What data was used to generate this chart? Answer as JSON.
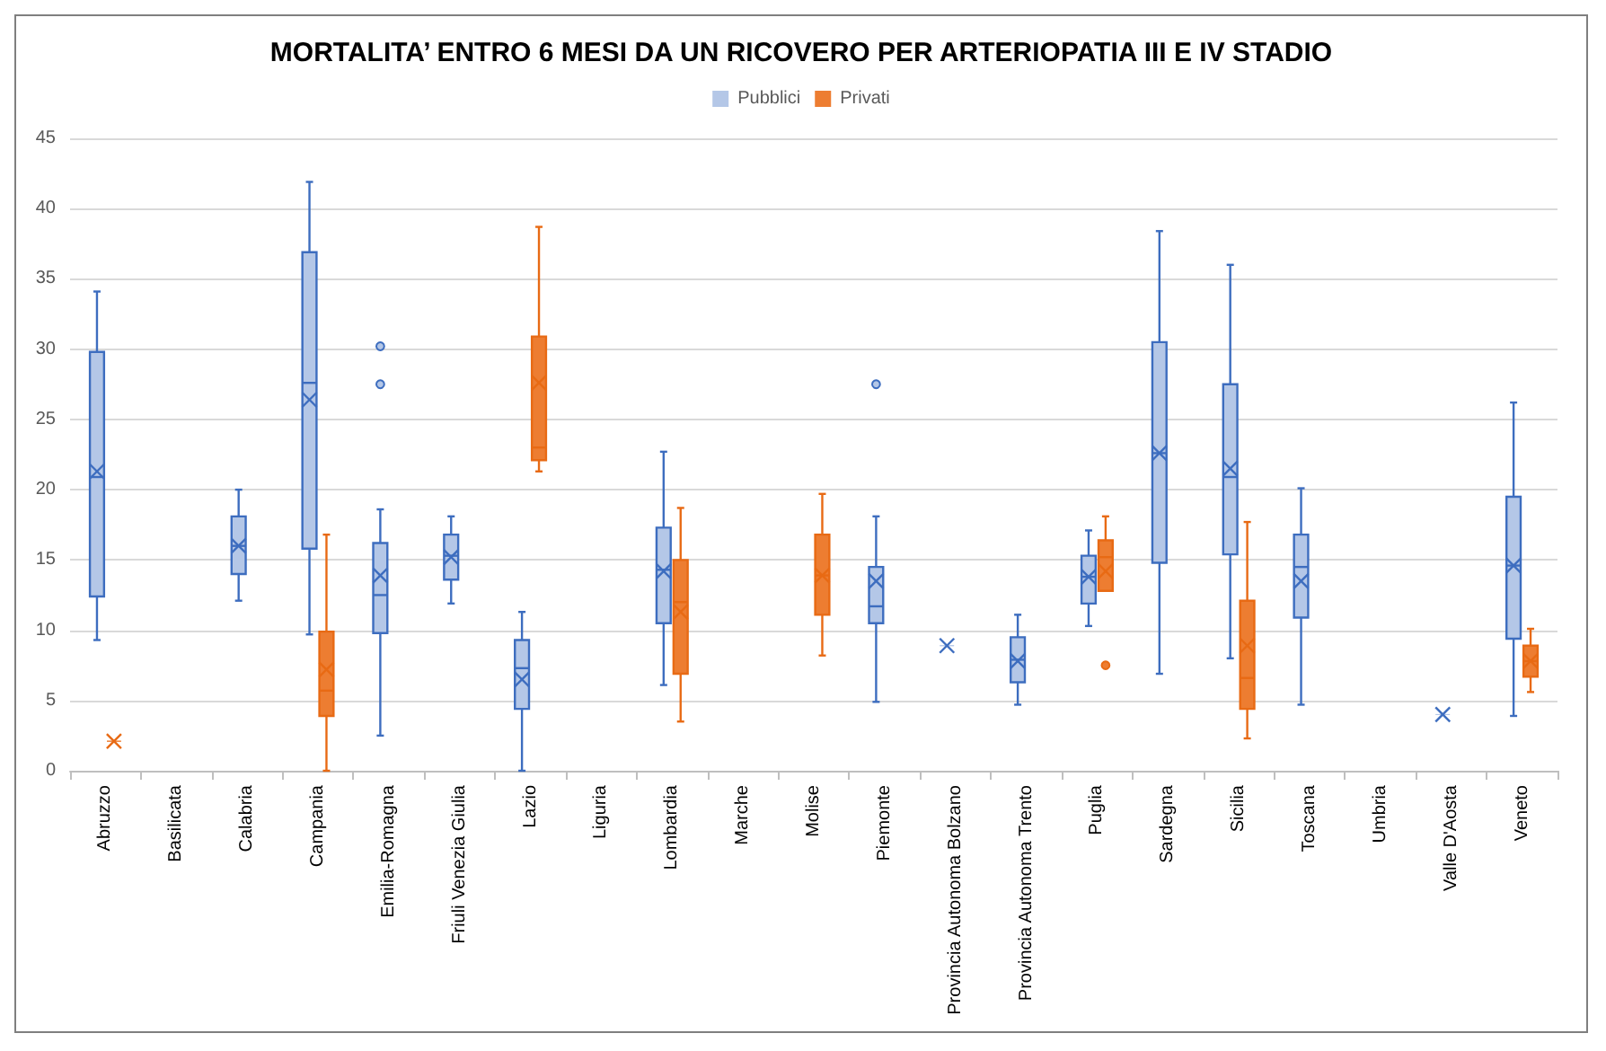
{
  "chart_data": {
    "type": "box",
    "title": "MORTALITA’ ENTRO 6 MESI DA UN RICOVERO PER ARTERIOPATIA III E IV STADIO",
    "categories": [
      "Abruzzo",
      "Basilicata",
      "Calabria",
      "Campania",
      "Emilia-Romagna",
      "Friuli Venezia Giulia",
      "Lazio",
      "Liguria",
      "Lombardia",
      "Marche",
      "Molise",
      "Piemonte",
      "Provincia Autonoma Bolzano",
      "Provincia Autonoma Trento",
      "Puglia",
      "Sardegna",
      "Sicilia",
      "Toscana",
      "Umbria",
      "Valle D'Aosta",
      "Veneto"
    ],
    "series": [
      {
        "name": "Pubblici",
        "color": "#b4c7e7",
        "boxes": [
          {
            "low": 9.3,
            "q1": 12.4,
            "median": 20.9,
            "q3": 29.8,
            "high": 34.1,
            "mean": 21.3
          },
          null,
          {
            "low": 12.1,
            "q1": 14.0,
            "median": 16.0,
            "q3": 18.1,
            "high": 20.0,
            "mean": 16.0
          },
          {
            "low": 9.7,
            "q1": 15.8,
            "median": 27.6,
            "q3": 36.9,
            "high": 41.9,
            "mean": 26.4
          },
          {
            "low": 2.5,
            "q1": 9.8,
            "median": 12.5,
            "q3": 16.2,
            "high": 18.6,
            "mean": 13.9,
            "outliers": [
              27.5,
              30.2
            ]
          },
          {
            "low": 11.9,
            "q1": 13.6,
            "median": 15.3,
            "q3": 16.8,
            "high": 18.1,
            "mean": 15.2
          },
          {
            "low": 0,
            "q1": 4.4,
            "median": 7.3,
            "q3": 9.3,
            "high": 11.3,
            "mean": 6.5
          },
          null,
          {
            "low": 6.1,
            "q1": 10.5,
            "median": 14.3,
            "q3": 17.3,
            "high": 22.7,
            "mean": 14.2
          },
          null,
          null,
          {
            "low": 4.9,
            "q1": 10.5,
            "median": 11.7,
            "q3": 14.5,
            "high": 18.1,
            "mean": 13.5,
            "outliers": [
              27.5
            ]
          },
          {
            "low": 8.9,
            "q1": 8.9,
            "median": 8.9,
            "q3": 8.9,
            "high": 8.9,
            "mean": 8.9
          },
          {
            "low": 4.7,
            "q1": 6.3,
            "median": 7.9,
            "q3": 9.5,
            "high": 11.1,
            "mean": 7.8
          },
          {
            "low": 10.3,
            "q1": 11.9,
            "median": 13.8,
            "q3": 15.3,
            "high": 17.1,
            "mean": 13.8
          },
          {
            "low": 6.9,
            "q1": 14.8,
            "median": 22.6,
            "q3": 30.5,
            "high": 38.4,
            "mean": 22.6
          },
          {
            "low": 8.0,
            "q1": 15.4,
            "median": 20.9,
            "q3": 27.5,
            "high": 36.0,
            "mean": 21.5
          },
          {
            "low": 4.7,
            "q1": 10.9,
            "median": 14.5,
            "q3": 16.8,
            "high": 20.1,
            "mean": 13.5
          },
          null,
          {
            "low": 4.0,
            "q1": 4.0,
            "median": 4.0,
            "q3": 4.0,
            "high": 4.0,
            "mean": 4.0
          },
          {
            "low": 3.9,
            "q1": 9.4,
            "median": 14.6,
            "q3": 19.5,
            "high": 26.2,
            "mean": 14.6
          }
        ]
      },
      {
        "name": "Privati",
        "color": "#ed7d31",
        "boxes": [
          {
            "low": 2.1,
            "q1": 2.1,
            "median": 2.1,
            "q3": 2.1,
            "high": 2.1,
            "mean": 2.1
          },
          null,
          null,
          {
            "low": 0,
            "q1": 3.9,
            "median": 5.7,
            "q3": 9.9,
            "high": 16.8,
            "mean": 7.2
          },
          null,
          null,
          {
            "low": 21.3,
            "q1": 22.1,
            "median": 23.0,
            "q3": 30.9,
            "high": 38.7,
            "mean": 27.6
          },
          null,
          {
            "low": 3.5,
            "q1": 6.9,
            "median": 12.0,
            "q3": 15.0,
            "high": 18.7,
            "mean": 11.3
          },
          null,
          {
            "low": 8.2,
            "q1": 11.1,
            "median": 13.9,
            "q3": 16.8,
            "high": 19.7,
            "mean": 13.9
          },
          null,
          null,
          null,
          {
            "low": 12.8,
            "q1": 12.8,
            "median": 15.2,
            "q3": 16.4,
            "high": 18.1,
            "mean": 14.2,
            "outliers": [
              7.5
            ]
          },
          null,
          {
            "low": 2.3,
            "q1": 4.4,
            "median": 6.6,
            "q3": 12.1,
            "high": 17.7,
            "mean": 8.9
          },
          null,
          null,
          null,
          {
            "low": 5.6,
            "q1": 6.7,
            "median": 7.8,
            "q3": 8.9,
            "high": 10.1,
            "mean": 7.8
          }
        ]
      }
    ],
    "ylim": [
      0,
      45
    ],
    "yticks": [
      0,
      5,
      10,
      15,
      20,
      25,
      30,
      35,
      40,
      45
    ],
    "grid": "y",
    "legend": "top"
  }
}
